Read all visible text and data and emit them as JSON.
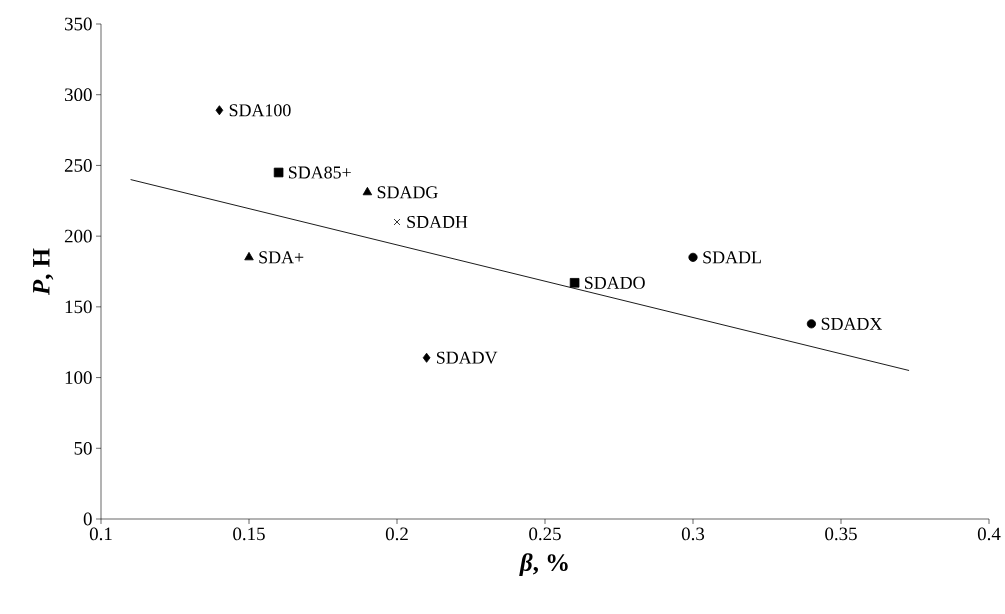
{
  "chart_data": {
    "type": "scatter",
    "xlabel": "*β*, %",
    "ylabel": "*P*, Н",
    "xlim": [
      0.1,
      0.4
    ],
    "ylim": [
      0,
      350
    ],
    "xticks": [
      0.1,
      0.15,
      0.2,
      0.25,
      0.3,
      0.35,
      0.4
    ],
    "yticks": [
      0,
      50,
      100,
      150,
      200,
      250,
      300,
      350
    ],
    "grid": false,
    "series": [
      {
        "name": "SDA100",
        "color": "#000000",
        "marker": "diamond",
        "x": [
          0.14
        ],
        "values": [
          289
        ]
      },
      {
        "name": "SDA85+",
        "color": "#000000",
        "marker": "square",
        "x": [
          0.16
        ],
        "values": [
          245
        ]
      },
      {
        "name": "SDADG",
        "color": "#000000",
        "marker": "triangle",
        "x": [
          0.19
        ],
        "values": [
          231
        ]
      },
      {
        "name": "SDADH",
        "color": "#000000",
        "marker": "cross",
        "x": [
          0.2
        ],
        "values": [
          210
        ]
      },
      {
        "name": "SDA+",
        "color": "#000000",
        "marker": "triangle",
        "x": [
          0.15
        ],
        "values": [
          185
        ]
      },
      {
        "name": "SDADO",
        "color": "#000000",
        "marker": "square",
        "x": [
          0.26
        ],
        "values": [
          167
        ]
      },
      {
        "name": "SDADL",
        "color": "#000000",
        "marker": "circle",
        "x": [
          0.3
        ],
        "values": [
          185
        ]
      },
      {
        "name": "SDADX",
        "color": "#000000",
        "marker": "circle",
        "x": [
          0.34
        ],
        "values": [
          138
        ]
      },
      {
        "name": "SDADV",
        "color": "#000000",
        "marker": "diamond",
        "x": [
          0.21
        ],
        "values": [
          114
        ]
      },
      {
        "type": "line",
        "color": "#000000",
        "marker": "none",
        "line_style": "solid",
        "x": [
          0.11,
          0.373
        ],
        "values": [
          240,
          105
        ]
      }
    ]
  }
}
